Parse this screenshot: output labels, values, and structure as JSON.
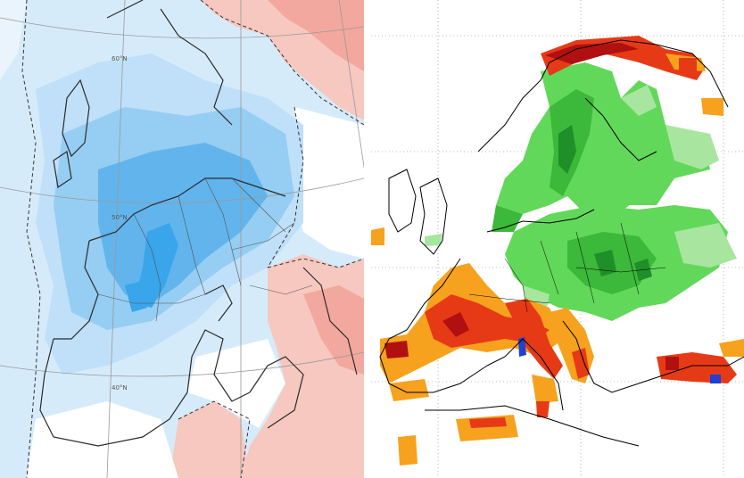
{
  "left_map": {
    "graticule_labels": [
      "60°N",
      "50°N",
      "40°N"
    ],
    "colors": {
      "sea_light": "#d6ebfa",
      "cool_light": "#bfe0f8",
      "cool_mid": "#96cdf2",
      "cool_strong": "#62b4ec",
      "cool_core": "#39a5ea",
      "warm_light": "#f6c8c0",
      "warm_mid": "#f2a89e",
      "neutral": "#ffffff",
      "coast": "#2b2b2b",
      "grid": "#9a9a9a"
    }
  },
  "right_map": {
    "colors": {
      "wet_light": "#a8e6a0",
      "wet_mid": "#62d85a",
      "wet_strong": "#3cb83a",
      "wet_core": "#1f8f2a",
      "dry_orange": "#f6a21e",
      "dry_red": "#e63a16",
      "dry_darkred": "#b01010",
      "extreme_blue": "#2040d0",
      "coast": "#000000",
      "grid": "#808080"
    }
  }
}
